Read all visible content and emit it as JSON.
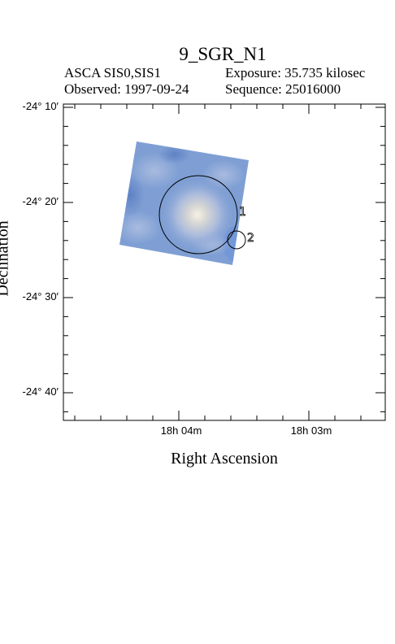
{
  "title": "9_SGR_N1",
  "header": {
    "instrument": "ASCA SIS0,SIS1",
    "exposure": "Exposure: 35.735 kilosec",
    "observed": "Observed: 1997-09-24",
    "sequence": "Sequence: 25016000"
  },
  "axes": {
    "xlabel": "Right Ascension",
    "ylabel": "Declination",
    "dec_ticks": [
      "-24° 10′",
      "-24° 20′",
      "-24° 30′",
      "-24° 40′"
    ],
    "ra_ticks": [
      "18h 04m",
      "18h 03m"
    ]
  },
  "regions": [
    {
      "label": "1"
    },
    {
      "label": "2"
    }
  ],
  "colors": {
    "image_tint": "#7f9fd4",
    "frame": "#000000"
  }
}
